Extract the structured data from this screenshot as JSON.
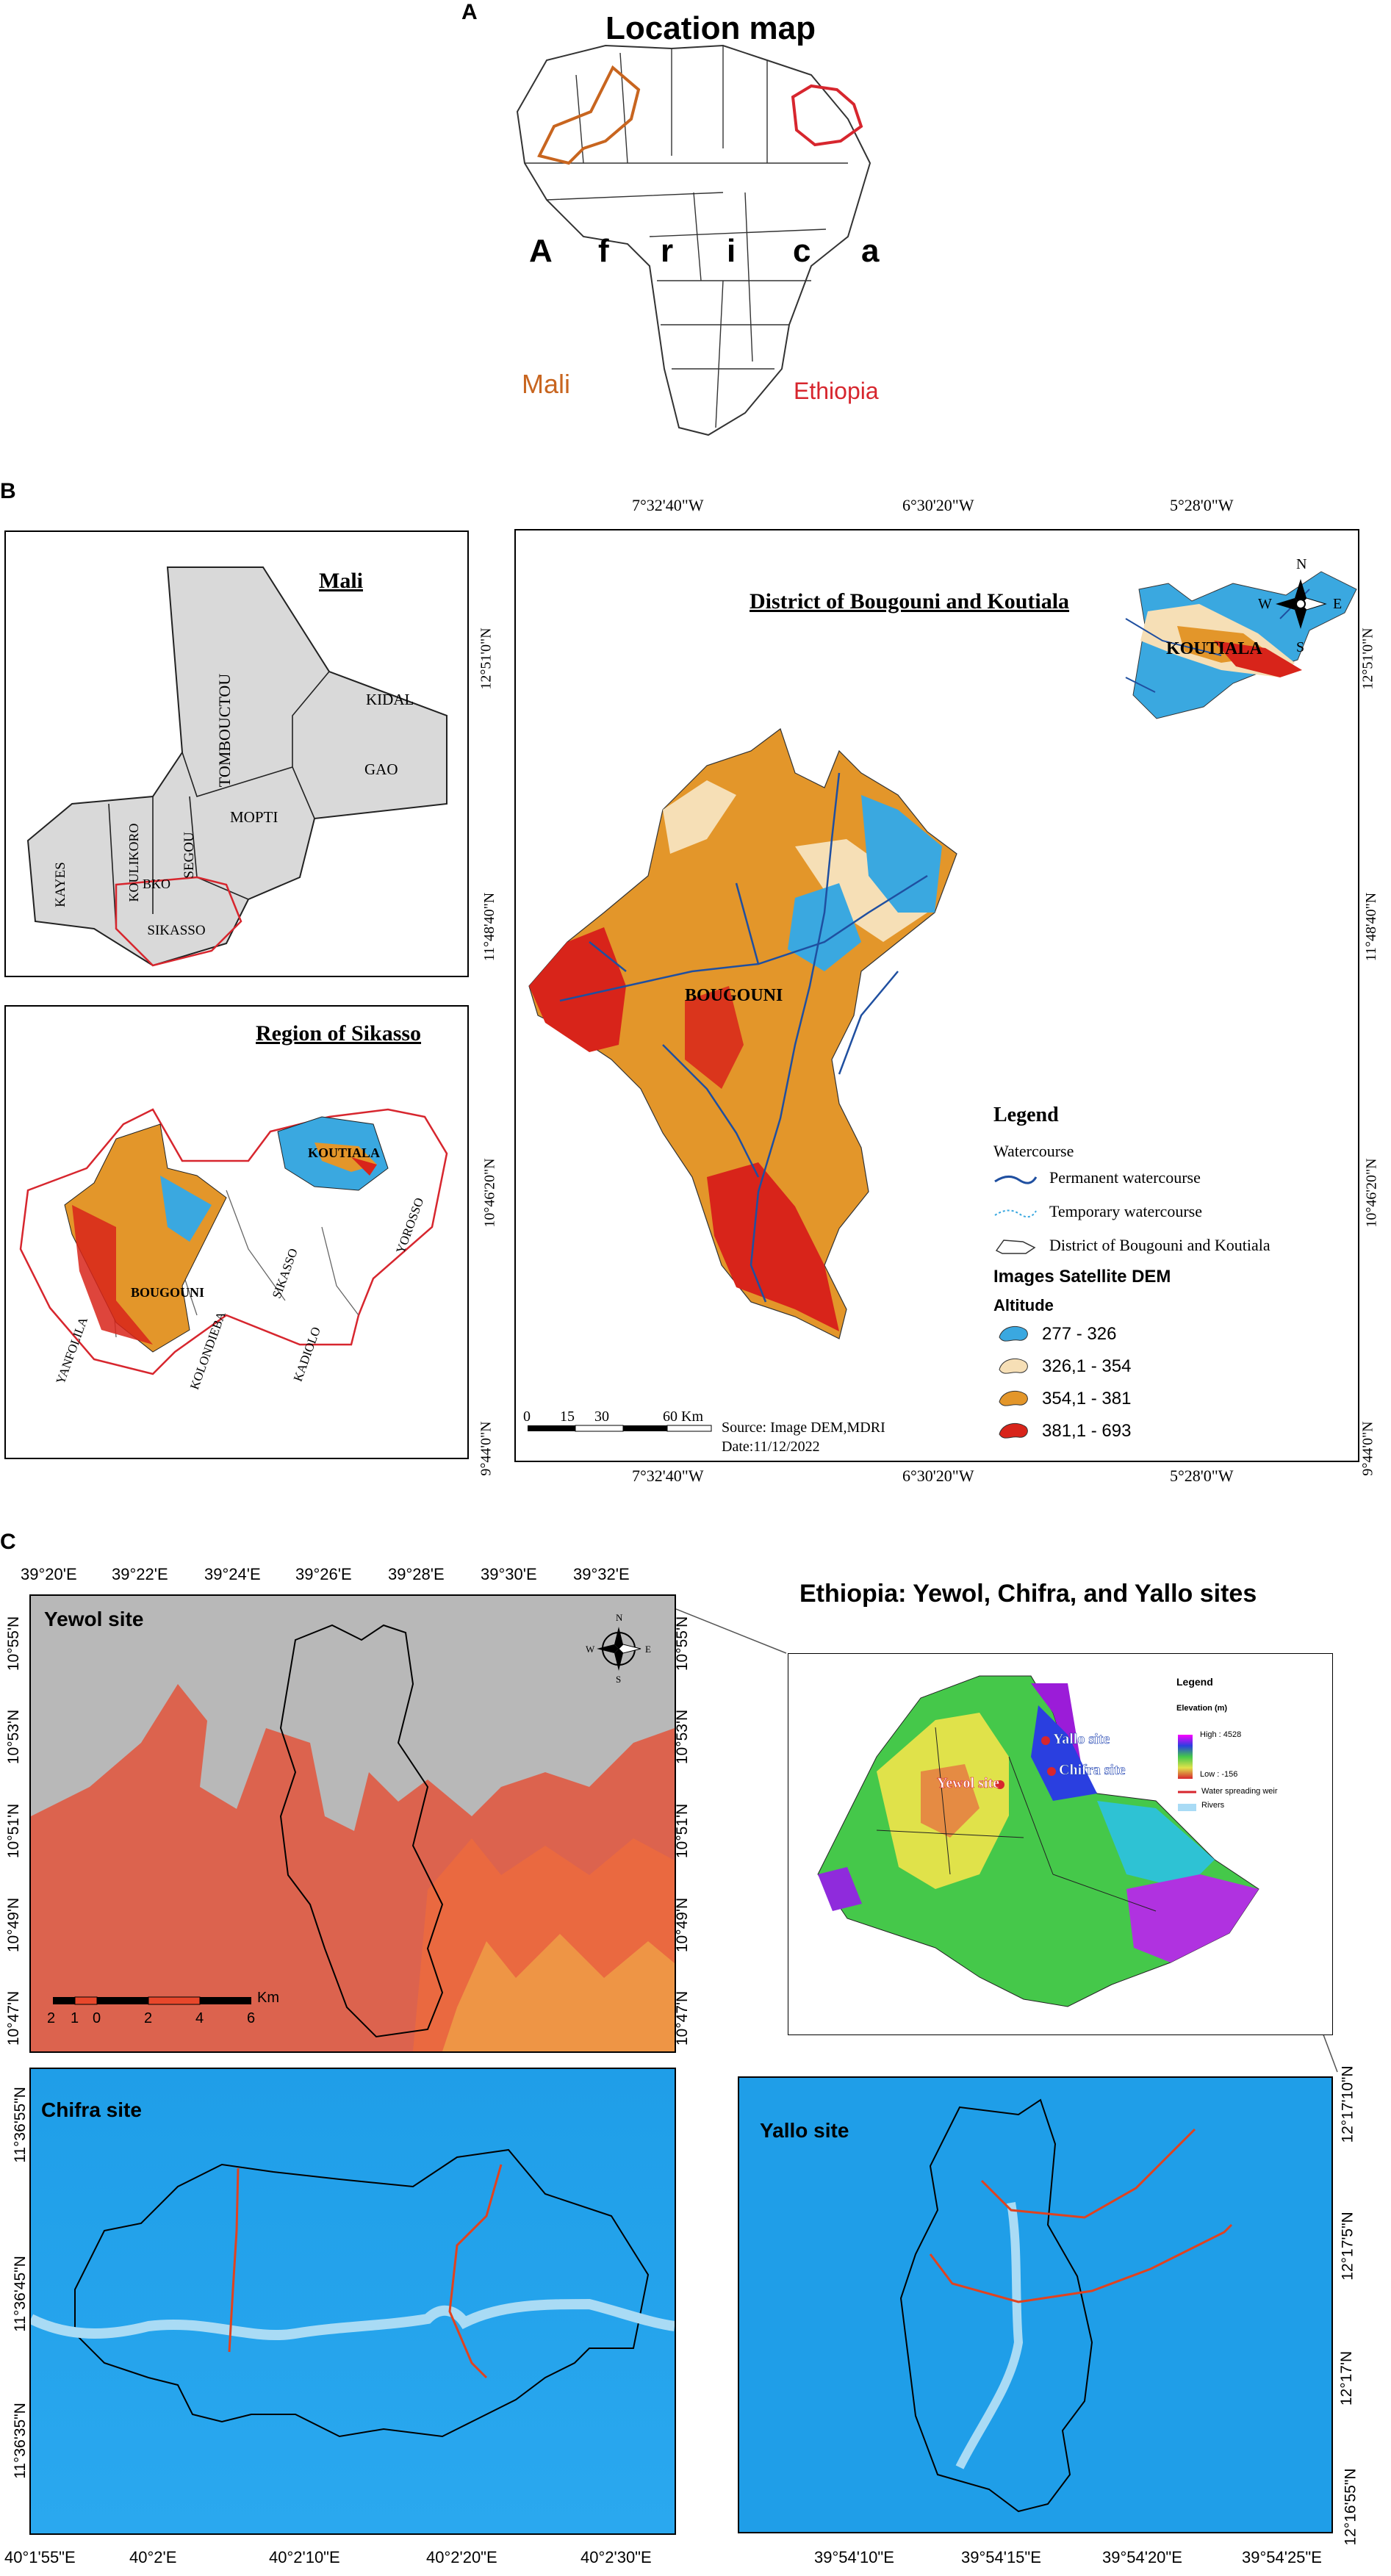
{
  "panels": {
    "a": {
      "letter": "A",
      "title": "Location map",
      "africa_letters": [
        "A",
        "f",
        "r",
        "i",
        "c",
        "a"
      ],
      "label_mali": "Mali",
      "label_ethiopia": "Ethiopia",
      "colors": {
        "mali": "#c8651f",
        "ethiopia": "#d7262e"
      }
    },
    "b": {
      "letter": "B",
      "mali_inset": {
        "title": "Mali",
        "regions": [
          "TOMBOUCTOU",
          "KIDAL",
          "GAO",
          "MOPTI",
          "SEGOU",
          "KAYES",
          "KOULIKORO",
          "BKO",
          "SIKASSO"
        ]
      },
      "sikasso_inset": {
        "title": "Region of Sikasso",
        "districts": [
          "KOUTIALA",
          "YOROSSO",
          "BOUGOUNI",
          "SIKASSO",
          "YANFOLILA",
          "KOLONDIEBA",
          "KADIOLO"
        ]
      },
      "main_map": {
        "title": "District of Bougouni and Koutiala",
        "district_labels": [
          "BOUGOUNI",
          "KOUTIALA"
        ],
        "top_coords": [
          "7°32'40\"W",
          "6°30'20\"W",
          "5°28'0\"W"
        ],
        "bottom_coords": [
          "7°32'40\"W",
          "6°30'20\"W",
          "5°28'0\"W"
        ],
        "left_coords": [
          "12°51'0\"N",
          "11°48'40\"N",
          "10°46'20\"N",
          "9°44'0\"N"
        ],
        "right_coords": [
          "12°51'0\"N",
          "11°48'40\"N",
          "10°46'20\"N",
          "9°44'0\"N"
        ],
        "compass": {
          "n": "N",
          "s": "S",
          "e": "E",
          "w": "W"
        },
        "scale": {
          "ticks": [
            "0",
            "15",
            "30",
            "60 Km"
          ]
        },
        "source_line1": "Source: Image DEM,MDRI",
        "source_line2": "Date:11/12/2022",
        "legend": {
          "title": "Legend",
          "watercourse_heading": "Watercourse",
          "permanent": "Permanent watercourse",
          "temporary": "Temporary watercourse",
          "district": "District of Bougouni and Koutiala",
          "dem_heading": "Images Satellite DEM",
          "altitude_heading": "Altitude",
          "classes": [
            {
              "label": "277 - 326",
              "color": "#3aa8e0"
            },
            {
              "label": "326,1 - 354",
              "color": "#f6dfb6"
            },
            {
              "label": "354,1 - 381",
              "color": "#e3962a"
            },
            {
              "label": "381,1 - 693",
              "color": "#d8241a"
            }
          ]
        },
        "colors": {
          "water_blue": "#3aa8e0",
          "river": "#1f4fa0"
        }
      }
    },
    "c": {
      "letter": "C",
      "ethiopia_title": "Ethiopia: Yewol, Chifra, and Yallo sites",
      "yewol": {
        "title": "Yewol site",
        "top_coords": [
          "39°20'E",
          "39°22'E",
          "39°24'E",
          "39°26'E",
          "39°28'E",
          "39°30'E",
          "39°32'E"
        ],
        "lat_coords": [
          "10°55'N",
          "10°53'N",
          "10°51'N",
          "10°49'N",
          "10°47'N"
        ],
        "scale_labels": [
          "2",
          "1",
          "0",
          "2",
          "4",
          "6"
        ],
        "scale_unit": "Km",
        "compass": {
          "n": "N",
          "s": "S",
          "e": "E",
          "w": "W"
        }
      },
      "inset_legend": {
        "title": "Legend",
        "elevation": "Elevation (m)",
        "high": "High : 4528",
        "low": "Low : -156",
        "weir": "Water spreading weir",
        "rivers": "Rivers",
        "site_labels": [
          "Yallo site",
          "Chifra site",
          "Yewol site"
        ]
      },
      "chifra": {
        "title": "Chifra site",
        "lat_coords": [
          "11°36'55\"N",
          "11°36'45\"N",
          "11°36'35\"N"
        ],
        "bottom_coords": [
          "40°1'55\"E",
          "40°2'E",
          "40°2'10\"E",
          "40°2'20\"E",
          "40°2'30\"E"
        ]
      },
      "yallo": {
        "title": "Yallo site",
        "lat_coords": [
          "12°17'10\"N",
          "12°17'5\"N",
          "12°17'N",
          "12°16'55\"N"
        ],
        "bottom_coords": [
          "39°54'10\"E",
          "39°54'15\"E",
          "39°54'20\"E",
          "39°54'25\"E"
        ]
      },
      "colors": {
        "sea": "#1f9ee8",
        "weir": "#e0421f",
        "river": "#a9dbf5",
        "dem_grey": "#b8b8b8",
        "dem_red": "#e8472b"
      }
    }
  }
}
